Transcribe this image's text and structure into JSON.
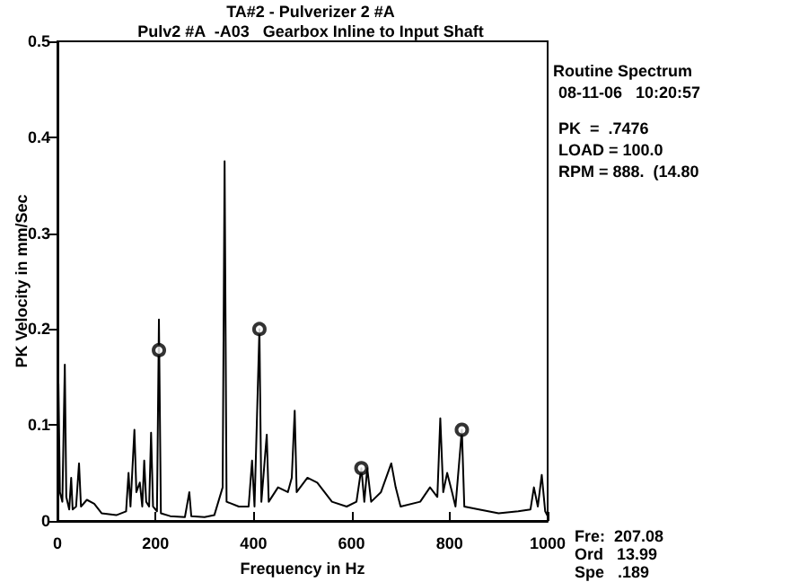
{
  "chart_data": {
    "type": "line",
    "title": "TA#2 - Pulverizer 2 #A",
    "subtitle": "Pulv2 #A  -A03   Gearbox Inline to Input Shaft",
    "xlabel": "Frequency in Hz",
    "ylabel": "PK Velocity in mm/Sec",
    "xlim": [
      0,
      1000
    ],
    "xticks": [
      0,
      200,
      400,
      600,
      800,
      1000
    ],
    "ylim": [
      0,
      0.5
    ],
    "yticks": [
      0,
      0.1,
      0.2,
      0.3,
      0.4,
      0.5
    ],
    "grid": false,
    "series": [
      {
        "color": "#000000",
        "marker": "none",
        "x": [
          0,
          2,
          5,
          10,
          15,
          18,
          24,
          28,
          31,
          38,
          44,
          48,
          60,
          75,
          90,
          120,
          140,
          145,
          149,
          157,
          161,
          168,
          173,
          177,
          181,
          187,
          191,
          195,
          203,
          207,
          211,
          230,
          260,
          269,
          273,
          300,
          320,
          337,
          341,
          345,
          370,
          390,
          397,
          402,
          412,
          416,
          427,
          431,
          450,
          470,
          478,
          484,
          488,
          510,
          530,
          560,
          590,
          610,
          620,
          626,
          632,
          640,
          660,
          681,
          690,
          700,
          740,
          760,
          775,
          781,
          787,
          795,
          805,
          812,
          825,
          830,
          860,
          900,
          940,
          965,
          972,
          980,
          988,
          995,
          1000
        ],
        "values": [
          0.02,
          0.143,
          0.03,
          0.02,
          0.163,
          0.025,
          0.012,
          0.045,
          0.012,
          0.015,
          0.06,
          0.015,
          0.022,
          0.018,
          0.008,
          0.006,
          0.01,
          0.05,
          0.015,
          0.095,
          0.03,
          0.04,
          0.015,
          0.063,
          0.02,
          0.015,
          0.092,
          0.015,
          0.01,
          0.21,
          0.008,
          0.005,
          0.004,
          0.03,
          0.005,
          0.004,
          0.006,
          0.035,
          0.375,
          0.02,
          0.015,
          0.015,
          0.063,
          0.015,
          0.2,
          0.02,
          0.09,
          0.02,
          0.035,
          0.03,
          0.045,
          0.115,
          0.03,
          0.045,
          0.04,
          0.02,
          0.015,
          0.02,
          0.055,
          0.02,
          0.055,
          0.02,
          0.03,
          0.06,
          0.035,
          0.015,
          0.02,
          0.035,
          0.025,
          0.107,
          0.03,
          0.05,
          0.03,
          0.015,
          0.095,
          0.015,
          0.012,
          0.008,
          0.01,
          0.012,
          0.035,
          0.015,
          0.048,
          0.01,
          0.005
        ]
      },
      {
        "type": "scatter",
        "color": "#000000",
        "marker": "circle",
        "x": [
          207,
          412,
          620,
          825
        ],
        "values": [
          0.178,
          0.2,
          0.055,
          0.095
        ]
      }
    ],
    "annotations": [
      "Routine Spectrum",
      "08-11-06   10:20:57",
      "PK  =  .7476",
      "LOAD = 100.0",
      "RPM = 888.  (14.80",
      "Fre:  207.08",
      "Ord   13.99",
      "Spe   .189"
    ]
  }
}
